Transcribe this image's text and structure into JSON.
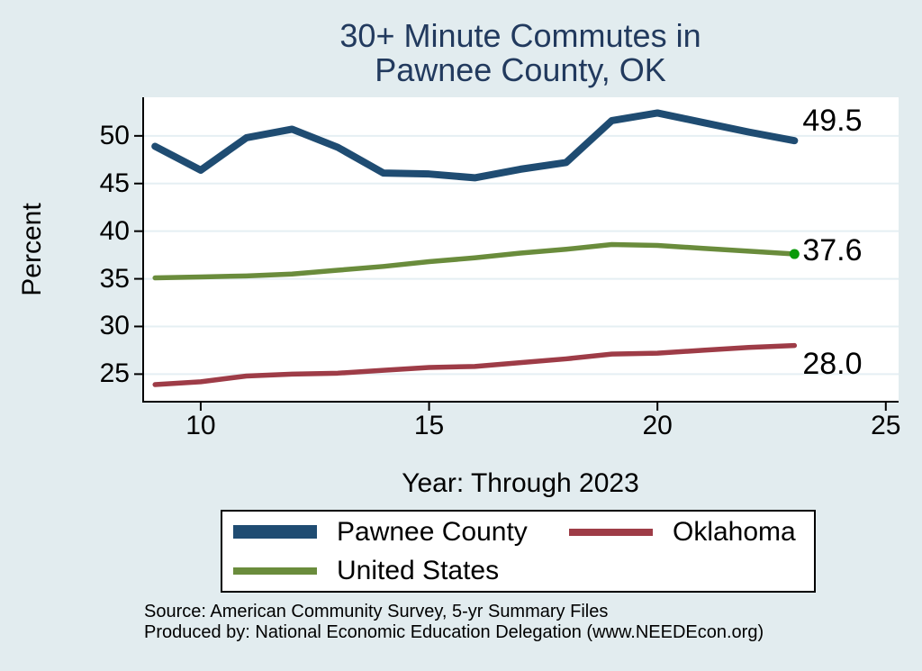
{
  "title": {
    "line1": "30+ Minute Commutes in",
    "line2": "Pawnee County, OK"
  },
  "axes": {
    "y_label": "Percent",
    "x_label": "Year: Through 2023",
    "y_ticks": [
      25,
      30,
      35,
      40,
      45,
      50
    ],
    "x_ticks": [
      10,
      15,
      20,
      25
    ]
  },
  "chart_data": {
    "type": "line",
    "title": "30+ Minute Commutes in Pawnee County, OK",
    "xlabel": "Year: Through 2023",
    "ylabel": "Percent",
    "xlim": [
      8.72,
      25.28
    ],
    "ylim": [
      22.2,
      54.05
    ],
    "grid": "horizontal",
    "legend_position": "bottom",
    "x": [
      9,
      10,
      11,
      12,
      13,
      14,
      15,
      16,
      17,
      18,
      19,
      20,
      21,
      22,
      23
    ],
    "series": [
      {
        "name": "Pawnee County",
        "color": "#1f4c72",
        "width": 8,
        "values": [
          48.9,
          46.4,
          49.8,
          50.7,
          48.8,
          46.1,
          46.0,
          45.6,
          46.5,
          47.2,
          51.6,
          52.4,
          51.4,
          50.4,
          49.5
        ],
        "end_label": "49.5"
      },
      {
        "name": "Oklahoma",
        "color": "#9e3c47",
        "width": 5.5,
        "values": [
          23.9,
          24.2,
          24.8,
          25.0,
          25.1,
          25.4,
          25.7,
          25.8,
          26.2,
          26.6,
          27.1,
          27.2,
          27.5,
          27.8,
          28.0
        ],
        "end_label": "28.0"
      },
      {
        "name": "United States",
        "color": "#6a8c3c",
        "width": 5.5,
        "values": [
          35.1,
          35.2,
          35.3,
          35.5,
          35.9,
          36.3,
          36.8,
          37.2,
          37.7,
          38.1,
          38.6,
          38.5,
          38.2,
          37.9,
          37.6
        ],
        "end_label": "37.6",
        "end_marker_color": "#0a9a0a"
      }
    ]
  },
  "source": {
    "line1": "Source: American Community Survey, 5-yr Summary Files",
    "line2": "Produced by: National Economic Education Delegation (www.NEEDEcon.org)"
  },
  "colors": {
    "background": "#e2ecef",
    "plot_bg": "#ffffff",
    "gridline": "#e5eff3",
    "axis": "#000000",
    "title": "#223a5e"
  }
}
